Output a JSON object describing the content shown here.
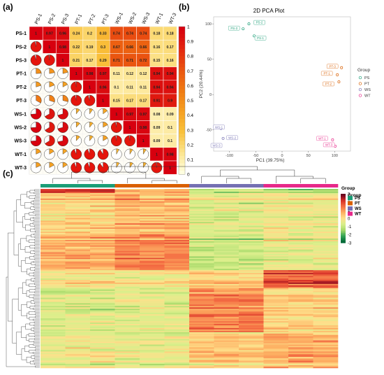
{
  "panel_labels": {
    "a": "(a)",
    "b": "(b)",
    "c": "(c)"
  },
  "colors": {
    "corr_scale": [
      "#ffffe0",
      "#fce38a",
      "#f9c03a",
      "#f59f21",
      "#f07a13",
      "#ea5410",
      "#e3260f",
      "#d7000f"
    ],
    "pie_fill_high": "#e5150c",
    "pie_fill_low": "#f3b61f",
    "group_PS": "#1b9e77",
    "group_PT": "#d95f02",
    "group_WS": "#7570b3",
    "group_WT": "#e7298a",
    "heat_scale": [
      "#006837",
      "#31a354",
      "#a6d96a",
      "#d9ef8b",
      "#fee08b",
      "#fdae61",
      "#f46d43",
      "#d73027",
      "#67001f"
    ]
  },
  "chart_data": [
    {
      "type": "heatmap",
      "labels": [
        "PS-1",
        "PS-2",
        "PS-3",
        "PT-1",
        "PT-2",
        "PT-3",
        "WS-1",
        "WS-2",
        "WS-3",
        "WT-1",
        "WT-3"
      ],
      "matrix": [
        [
          1,
          0.97,
          0.96,
          0.24,
          0.2,
          0.33,
          0.74,
          0.74,
          0.74,
          0.18,
          0.18
        ],
        [
          0.97,
          1,
          0.98,
          0.22,
          0.19,
          0.3,
          0.67,
          0.66,
          0.66,
          0.16,
          0.17
        ],
        [
          0.96,
          0.98,
          1,
          0.21,
          0.17,
          0.29,
          0.71,
          0.71,
          0.72,
          0.15,
          0.16
        ],
        [
          0.24,
          0.22,
          0.21,
          1,
          0.98,
          0.97,
          0.11,
          0.12,
          0.12,
          0.94,
          0.94
        ],
        [
          0.2,
          0.19,
          0.17,
          0.98,
          1,
          0.96,
          0.1,
          0.11,
          0.11,
          0.94,
          0.94
        ],
        [
          0.33,
          0.3,
          0.29,
          0.97,
          0.96,
          1,
          0.15,
          0.17,
          0.17,
          0.91,
          0.9
        ],
        [
          0.74,
          0.67,
          0.71,
          0.11,
          0.1,
          0.15,
          1,
          0.97,
          0.97,
          0.08,
          0.09
        ],
        [
          0.74,
          0.66,
          0.71,
          0.12,
          0.11,
          0.17,
          0.97,
          1,
          0.98,
          0.09,
          0.1
        ],
        [
          0.74,
          0.66,
          0.72,
          0.12,
          0.11,
          0.17,
          0.97,
          0.98,
          1,
          0.09,
          0.1
        ],
        [
          0.18,
          0.16,
          0.15,
          0.94,
          0.94,
          0.91,
          0.08,
          0.09,
          0.09,
          1,
          0.98
        ],
        [
          0.18,
          0.17,
          0.16,
          0.94,
          0.94,
          0.9,
          0.09,
          0.1,
          0.1,
          0.98,
          1
        ]
      ],
      "upper_triangle": "values",
      "lower_triangle": "pies",
      "colorbar": {
        "ticks": [
          1,
          0.9,
          0.8,
          0.7,
          0.6,
          0.5,
          0.4,
          0.3,
          0.2,
          0.1,
          0
        ],
        "range": [
          0,
          1
        ]
      }
    },
    {
      "type": "scatter",
      "title": "2D PCA Plot",
      "xlabel": "PC1 (39.75%)",
      "ylabel": "PC2 (20.44%)",
      "xlim": [
        -130,
        130
      ],
      "ylim": [
        -80,
        110
      ],
      "xticks": [
        -100,
        -50,
        0,
        50,
        100
      ],
      "yticks": [
        100,
        50,
        0,
        -50
      ],
      "points": [
        {
          "label": "PS-1",
          "group": "PS",
          "x": -53,
          "y": 83
        },
        {
          "label": "PS-2",
          "group": "PS",
          "x": -63,
          "y": 100
        },
        {
          "label": "PS-3",
          "group": "PS",
          "x": -74,
          "y": 93
        },
        {
          "label": "PT-1",
          "group": "PT",
          "x": 105,
          "y": 28
        },
        {
          "label": "PT-2",
          "group": "PT",
          "x": 108,
          "y": 18
        },
        {
          "label": "PT-3",
          "group": "PT",
          "x": 113,
          "y": 38
        },
        {
          "label": "WS-1",
          "group": "WS",
          "x": -116,
          "y": -48
        },
        {
          "label": "WS-2",
          "group": "WS",
          "x": -112,
          "y": -62
        },
        {
          "label": "WS-3",
          "group": "WS",
          "x": -118,
          "y": -72
        },
        {
          "label": "WT-1",
          "group": "WT",
          "x": 96,
          "y": -64
        },
        {
          "label": "WT-3",
          "group": "WT",
          "x": 101,
          "y": -73
        }
      ],
      "legend": {
        "title": "Group",
        "position": "right",
        "entries": [
          "PS",
          "PT",
          "WS",
          "WT"
        ]
      },
      "grid": false
    },
    {
      "type": "heatmap",
      "column_groups": [
        "PS",
        "PS",
        "PS",
        "PT",
        "PT",
        "PT",
        "WS",
        "WS",
        "WS",
        "WT",
        "WT",
        "WT"
      ],
      "row_count": 260,
      "scale": {
        "ticks": [
          3,
          2,
          1,
          0,
          -1,
          -2,
          -3
        ],
        "range": [
          -3,
          3
        ]
      },
      "legend": {
        "title": "Group",
        "entries": [
          "PS",
          "PT",
          "WS",
          "WT"
        ]
      },
      "annotation_title": "Group",
      "row_dendrogram": true,
      "column_dendrogram": true
    }
  ]
}
